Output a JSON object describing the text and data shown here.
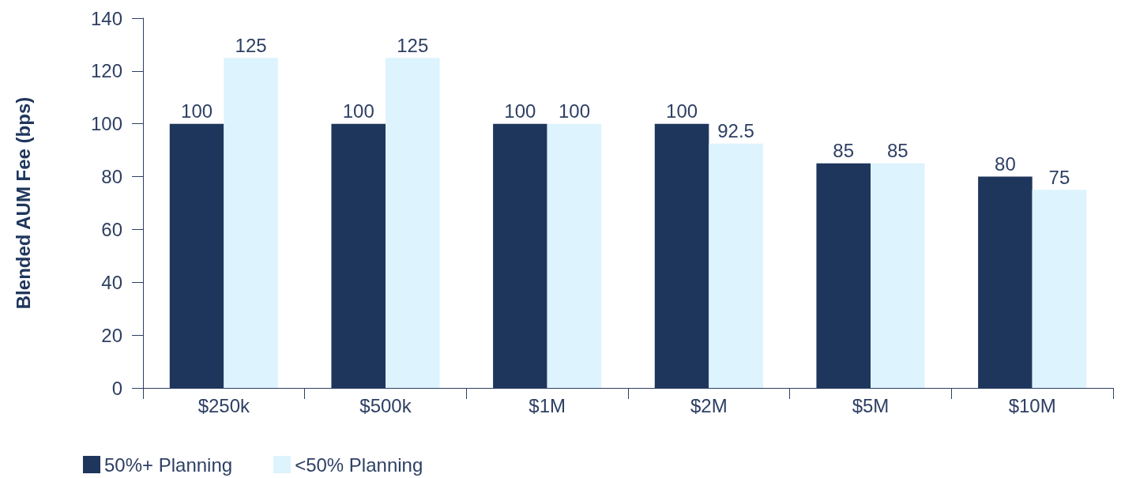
{
  "chart_data": {
    "type": "bar",
    "ylabel": "Blended AUM Fee (bps)",
    "categories": [
      "$250k",
      "$500k",
      "$1M",
      "$2M",
      "$5M",
      "$10M"
    ],
    "series": [
      {
        "name": "50%+ Planning",
        "color": "#1f365c",
        "values": [
          100,
          100,
          100,
          100,
          85,
          80
        ]
      },
      {
        "name": "<50% Planning",
        "color": "#ddf3fd",
        "values": [
          125,
          125,
          100,
          92.5,
          85,
          75
        ]
      }
    ],
    "ylim": [
      0,
      140
    ],
    "yticks": [
      0,
      20,
      40,
      60,
      80,
      100,
      120,
      140
    ],
    "grid": false,
    "legend": "bottom left",
    "data_labels": true
  }
}
